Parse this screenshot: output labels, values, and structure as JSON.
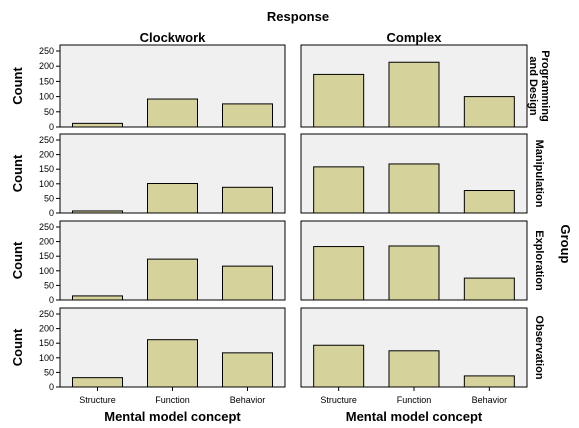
{
  "chart_data": {
    "type": "bar",
    "title": "Response",
    "facet_row_label": "Group",
    "ylabel": "Count",
    "xlabel": "Mental model concept",
    "categories": [
      "Structure",
      "Function",
      "Behavior"
    ],
    "ylim": [
      0,
      250
    ],
    "yticks": [
      0,
      50,
      100,
      150,
      200,
      250
    ],
    "columns": [
      "Clockwork",
      "Complex"
    ],
    "rows": [
      {
        "label": "Programming and Design",
        "label_lines": [
          "Programming",
          "and Design"
        ],
        "values": {
          "Clockwork": [
            12,
            92,
            76
          ],
          "Complex": [
            173,
            213,
            100
          ]
        }
      },
      {
        "label": "Manipulation",
        "label_lines": [
          "Manipulation"
        ],
        "values": {
          "Clockwork": [
            7,
            101,
            88
          ],
          "Complex": [
            158,
            168,
            77
          ]
        }
      },
      {
        "label": "Exploration",
        "label_lines": [
          "Exploration"
        ],
        "values": {
          "Clockwork": [
            14,
            140,
            116
          ],
          "Complex": [
            183,
            185,
            75
          ]
        }
      },
      {
        "label": "Observation",
        "label_lines": [
          "Observation"
        ],
        "values": {
          "Clockwork": [
            32,
            162,
            117
          ],
          "Complex": [
            143,
            124,
            38
          ]
        }
      }
    ],
    "colors": {
      "bar_fill": "#d6d29c",
      "bar_stroke": "#000000",
      "panel_bg": "#f0f0f0",
      "panel_border": "#000000"
    },
    "grid": false,
    "legend": "none"
  }
}
